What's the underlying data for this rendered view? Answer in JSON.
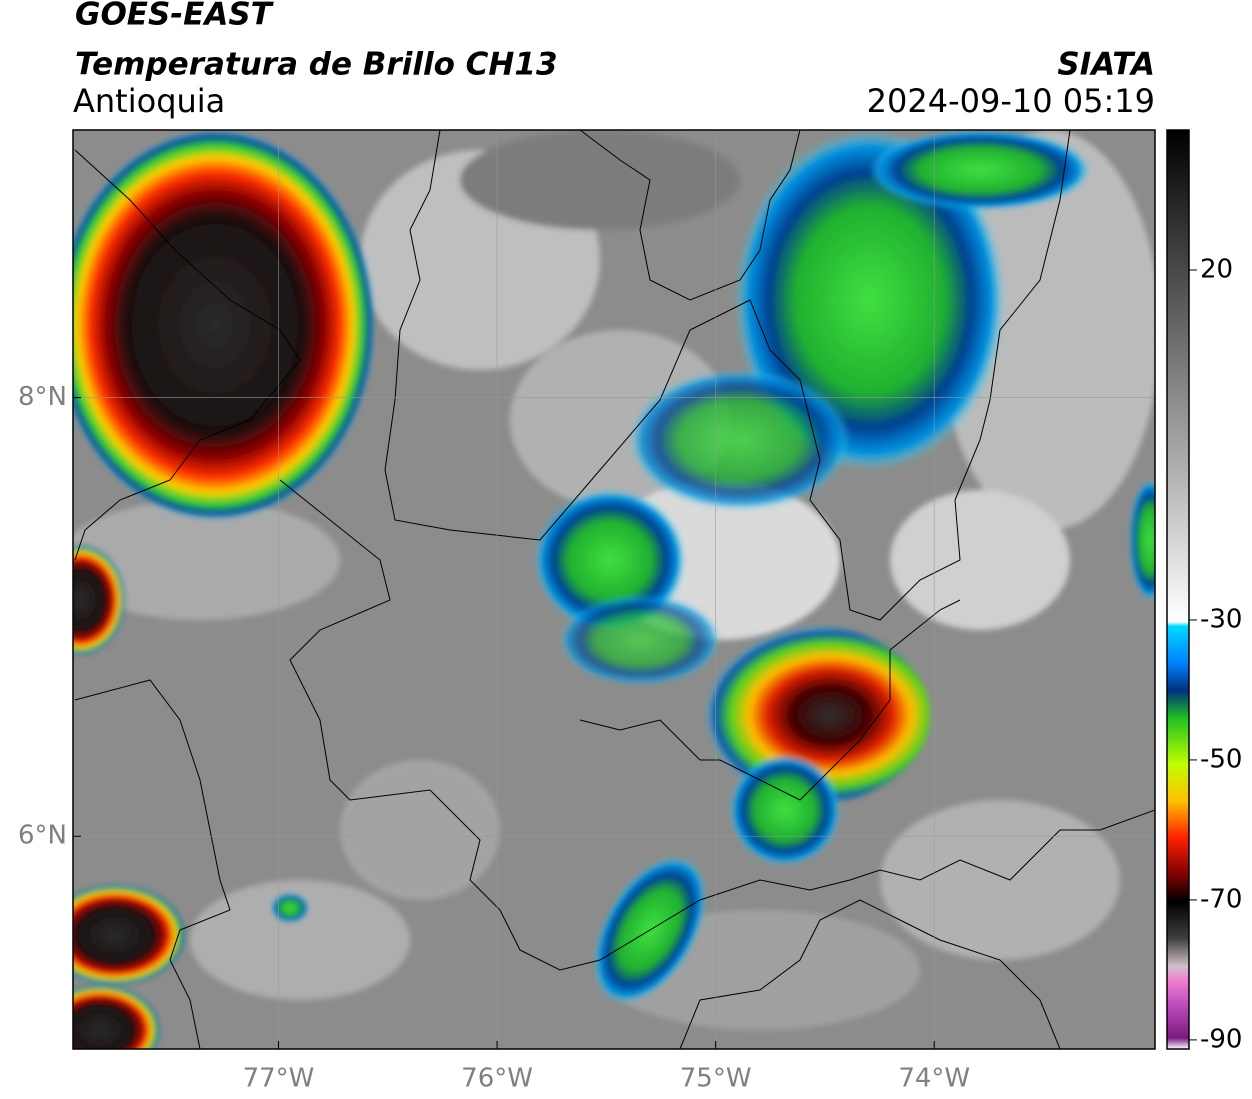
{
  "header": {
    "title": "GOES-EAST",
    "subtitle": "Temperatura de Brillo CH13",
    "region": "Antioquia",
    "source": "SIATA",
    "datetime": "2024-09-10 05:19"
  },
  "map": {
    "xlim": [
      -77.94,
      -72.99
    ],
    "ylim": [
      5.03,
      9.22
    ],
    "xticks": [
      {
        "value": -77,
        "label": "77°W"
      },
      {
        "value": -76,
        "label": "76°W"
      },
      {
        "value": -75,
        "label": "75°W"
      },
      {
        "value": -74,
        "label": "74°W"
      }
    ],
    "yticks": [
      {
        "value": 8,
        "label": "8°N"
      },
      {
        "value": 6,
        "label": "6°N"
      }
    ],
    "grid": true
  },
  "colorbar": {
    "lim": [
      -91.3,
      40
    ],
    "ticks": [
      20,
      -30,
      -50,
      -70,
      -90
    ]
  }
}
